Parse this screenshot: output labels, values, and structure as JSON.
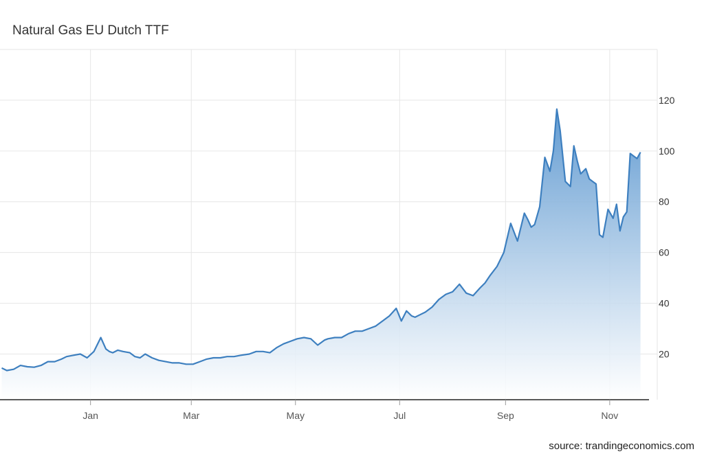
{
  "title": "Natural Gas EU Dutch TTF",
  "source": "source: trandingeconomics.com",
  "colors": {
    "line": "#3d7fbf",
    "fill_top": "#5a96cf",
    "fill_bottom": "#ffffff",
    "grid": "#e6e6e6",
    "axis": "#222222"
  },
  "chart_data": {
    "type": "area",
    "title": "Natural Gas EU Dutch TTF",
    "xlabel": "",
    "ylabel": "",
    "x_ticks": [
      "Jan",
      "Mar",
      "May",
      "Jul",
      "Sep",
      "Nov"
    ],
    "y_ticks": [
      20,
      40,
      60,
      80,
      100,
      120
    ],
    "ylim": [
      2,
      140
    ],
    "grid": true,
    "y_axis_side": "right",
    "series": [
      {
        "x": [
          "Nov 10",
          "Nov 13",
          "Nov 17",
          "Nov 21",
          "Nov 25",
          "Nov 29",
          "Dec 3",
          "Dec 7",
          "Dec 11",
          "Dec 15",
          "Dec 18",
          "Dec 22",
          "Dec 26",
          "Dec 30",
          "Jan 3",
          "Jan 7",
          "Jan 10",
          "Jan 12",
          "Jan 14",
          "Jan 17",
          "Jan 20",
          "Jan 24",
          "Jan 27",
          "Jan 30",
          "Feb 2",
          "Feb 6",
          "Feb 10",
          "Feb 14",
          "Feb 18",
          "Feb 22",
          "Feb 26",
          "Mar 2",
          "Mar 6",
          "Mar 10",
          "Mar 14",
          "Mar 18",
          "Mar 22",
          "Mar 26",
          "Mar 30",
          "Apr 4",
          "Apr 8",
          "Apr 12",
          "Apr 16",
          "Apr 20",
          "Apr 24",
          "Apr 28",
          "May 2",
          "May 6",
          "May 10",
          "May 14",
          "May 18",
          "May 20",
          "May 24",
          "May 28",
          "Jun 1",
          "Jun 5",
          "Jun 9",
          "Jun 13",
          "Jun 17",
          "Jun 21",
          "Jun 25",
          "Jun 29",
          "Jul 2",
          "Jul 5",
          "Jul 8",
          "Jul 10",
          "Jul 13",
          "Jul 16",
          "Jul 20",
          "Jul 24",
          "Jul 28",
          "Aug 1",
          "Aug 5",
          "Aug 9",
          "Aug 13",
          "Aug 17",
          "Aug 20",
          "Aug 23",
          "Aug 27",
          "Aug 31",
          "Sep 4",
          "Sep 8",
          "Sep 12",
          "Sep 14",
          "Sep 16",
          "Sep 18",
          "Sep 21",
          "Sep 24",
          "Sep 27",
          "Sep 29",
          "Oct 1",
          "Oct 3",
          "Oct 6",
          "Oct 9",
          "Oct 11",
          "Oct 13",
          "Oct 15",
          "Oct 18",
          "Oct 20",
          "Oct 22",
          "Oct 24",
          "Oct 26",
          "Oct 28",
          "Oct 31",
          "Nov 3",
          "Nov 5",
          "Nov 7",
          "Nov 9",
          "Nov 11",
          "Nov 13",
          "Nov 15",
          "Nov 17",
          "Nov 19"
        ],
        "values": [
          14.5,
          13.5,
          14.0,
          15.5,
          15.0,
          14.8,
          15.5,
          17.0,
          17.0,
          18.0,
          19.0,
          19.5,
          20.0,
          18.5,
          21.0,
          26.5,
          22.0,
          21.0,
          20.5,
          21.5,
          21.0,
          20.5,
          19.0,
          18.5,
          20.0,
          18.5,
          17.5,
          17.0,
          16.5,
          16.5,
          16.0,
          16.0,
          17.0,
          18.0,
          18.5,
          18.5,
          19.0,
          19.0,
          19.5,
          20.0,
          21.0,
          21.0,
          20.5,
          22.5,
          24.0,
          25.0,
          26.0,
          26.5,
          26.0,
          23.5,
          25.5,
          26.0,
          26.5,
          26.5,
          28.0,
          29.0,
          29.0,
          30.0,
          31.0,
          33.0,
          35.0,
          38.0,
          33.0,
          37.0,
          35.0,
          34.5,
          35.5,
          36.5,
          38.5,
          41.5,
          43.5,
          44.5,
          47.5,
          44.0,
          43.0,
          46.0,
          48.0,
          51.0,
          54.5,
          60.0,
          71.5,
          64.5,
          75.5,
          73.0,
          70.0,
          71.0,
          78.0,
          97.5,
          92.0,
          100.0,
          116.5,
          108.0,
          88.0,
          86.0,
          102.0,
          96.0,
          91.0,
          93.0,
          89.0,
          88.0,
          87.0,
          67.0,
          66.0,
          77.0,
          73.5,
          79.0,
          68.5,
          74.0,
          76.0,
          99.0,
          98.0,
          97.0,
          99.5
        ]
      }
    ]
  }
}
